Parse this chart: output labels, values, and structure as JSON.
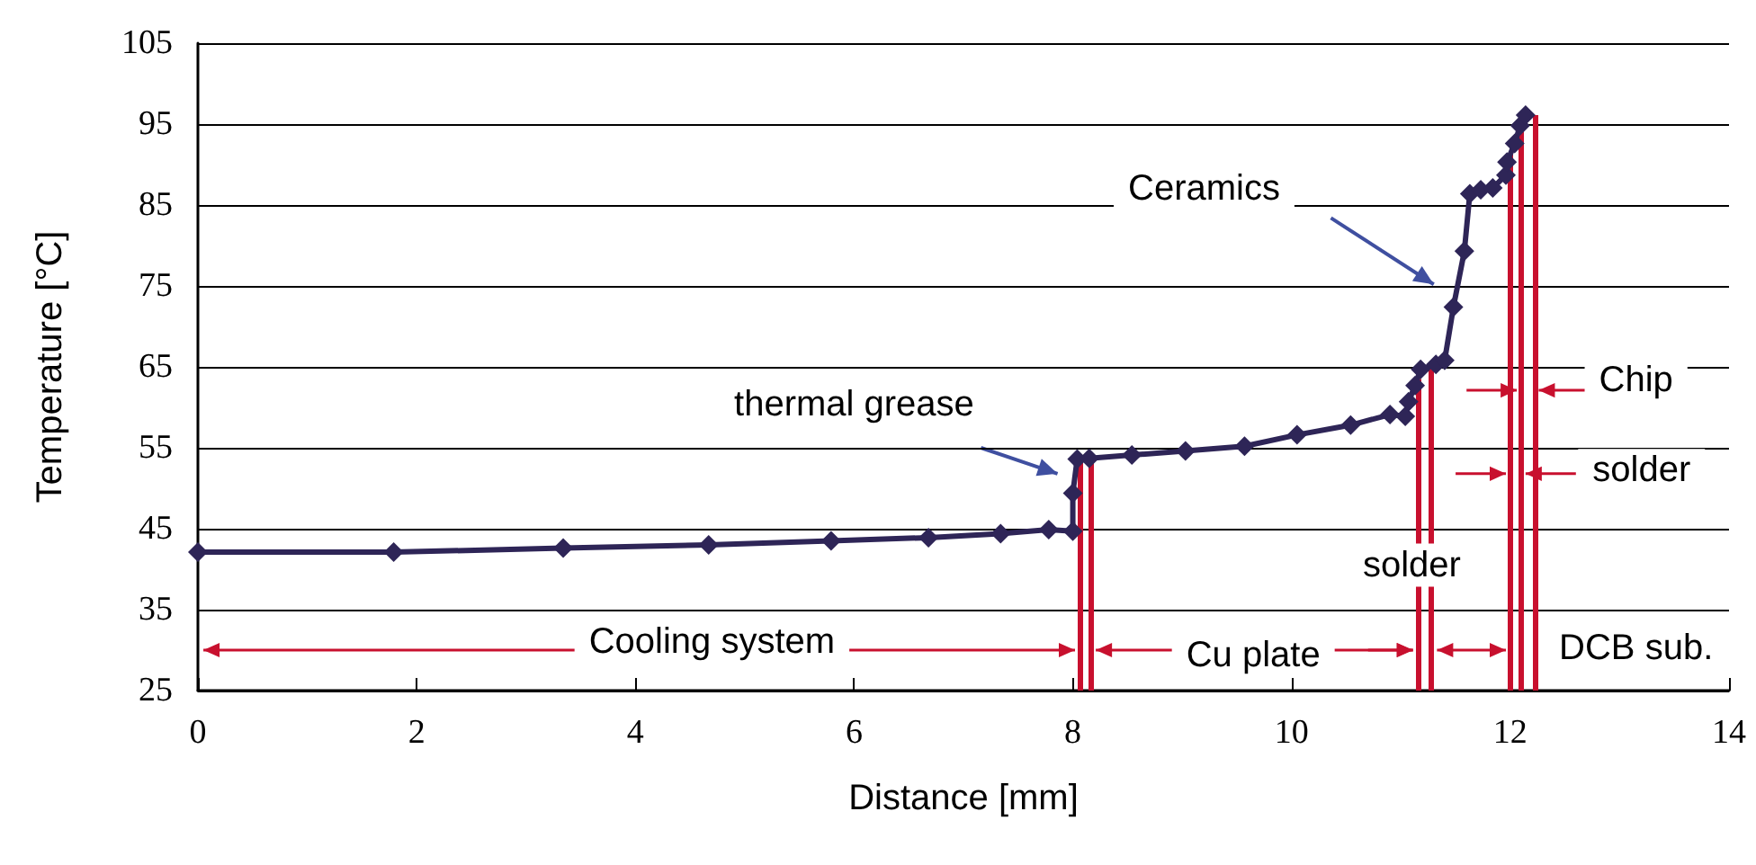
{
  "chart_data": {
    "type": "line",
    "xlabel": "Distance [mm]",
    "ylabel": "Temperature [°C]",
    "x": [
      0,
      1.79,
      3.34,
      4.67,
      5.79,
      6.68,
      7.34,
      7.78,
      8.0,
      8.0,
      8.04,
      8.15,
      8.54,
      9.03,
      9.57,
      10.05,
      10.54,
      10.9,
      11.04,
      11.07,
      11.13,
      11.18,
      11.32,
      11.4,
      11.48,
      11.58,
      11.63,
      11.73,
      11.84,
      11.96,
      11.97,
      12.04,
      12.09,
      12.14
    ],
    "series": [
      {
        "color": "#2e2557",
        "values": [
          42.1,
          42.1,
          42.6,
          43.0,
          43.5,
          43.9,
          44.4,
          44.9,
          44.7,
          49.4,
          53.6,
          53.7,
          54.1,
          54.6,
          55.2,
          56.6,
          57.8,
          59.1,
          58.9,
          60.7,
          62.7,
          64.7,
          65.3,
          65.8,
          72.4,
          79.3,
          86.4,
          86.9,
          87.1,
          88.7,
          90.3,
          92.6,
          94.8,
          96.1
        ]
      }
    ],
    "xlim": [
      0,
      14
    ],
    "xticks": [
      0,
      2,
      4,
      6,
      8,
      10,
      12,
      14
    ],
    "ylim": [
      25,
      105
    ],
    "yticks": [
      25,
      35,
      45,
      55,
      65,
      75,
      85,
      95,
      105
    ],
    "grid": "y",
    "marker": "diamond",
    "line_style": "solid",
    "ref_lines": [
      {
        "axis": "x",
        "value": 8.06,
        "color": "#c8102e"
      },
      {
        "axis": "x",
        "value": 8.16,
        "color": "#c8102e"
      },
      {
        "axis": "x",
        "value": 11.15,
        "color": "#c8102e"
      },
      {
        "axis": "x",
        "value": 11.28,
        "color": "#c8102e"
      },
      {
        "axis": "x",
        "value": 12.0,
        "color": "#c8102e"
      },
      {
        "axis": "x",
        "value": 12.1,
        "color": "#c8102e"
      },
      {
        "axis": "x",
        "value": 12.22,
        "color": "#c8102e"
      }
    ],
    "annotations": [
      "Cooling system",
      "Cu plate",
      "solder",
      "DCB sub.",
      "solder",
      "Chip",
      "thermal grease",
      "Ceramics"
    ]
  }
}
